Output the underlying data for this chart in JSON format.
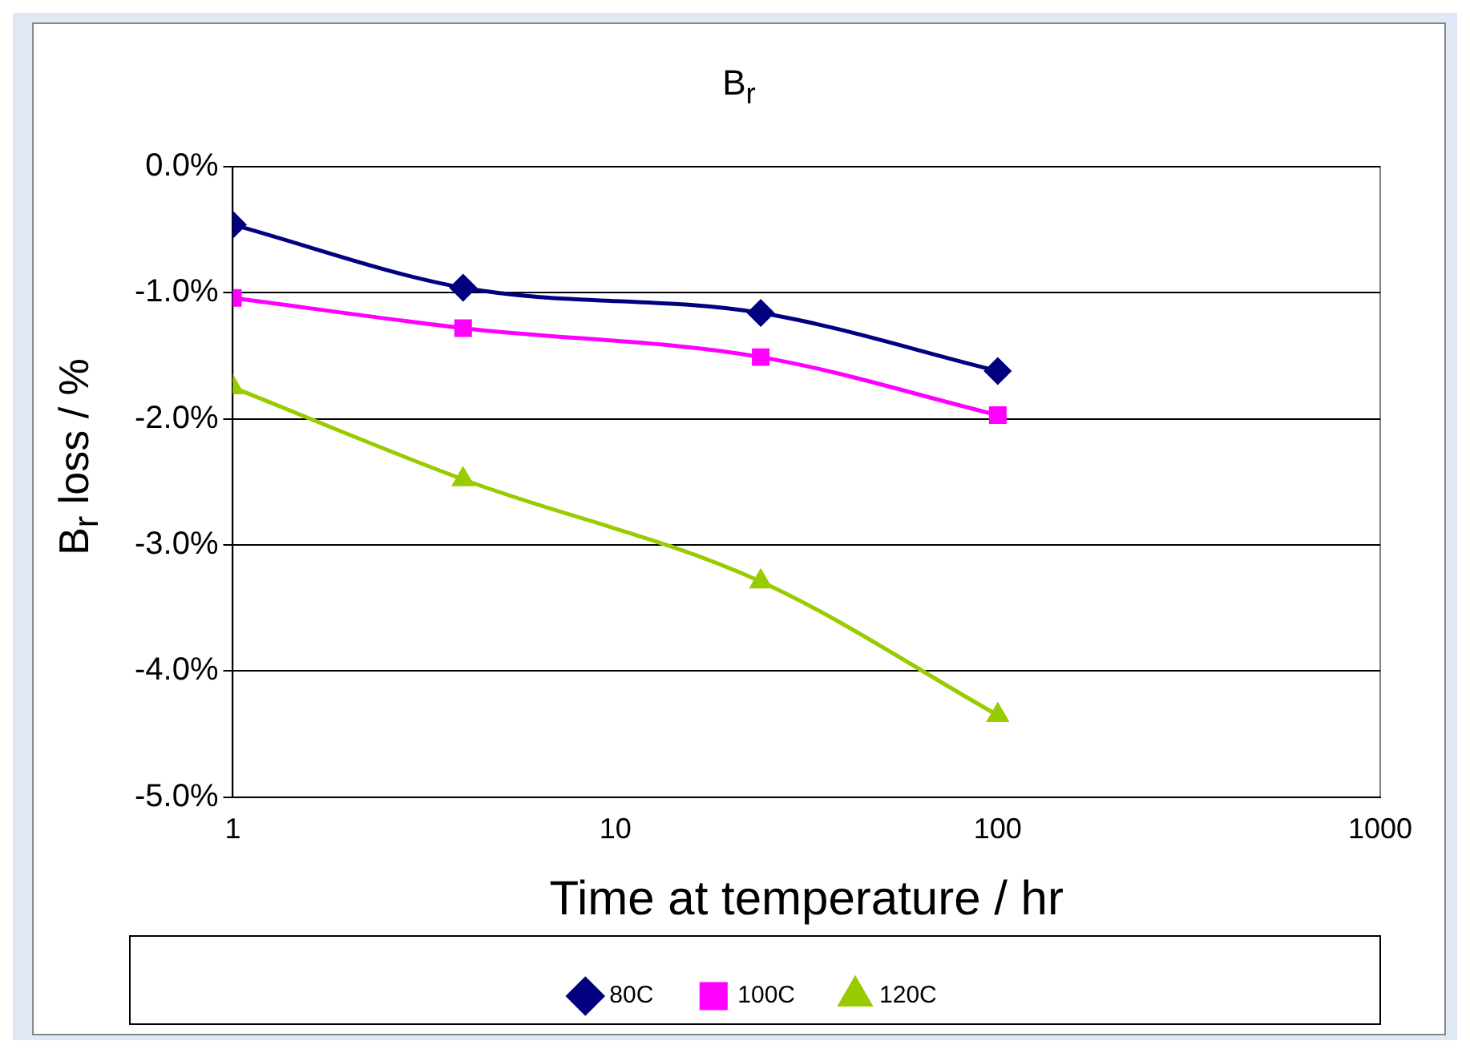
{
  "chart_data": {
    "type": "line",
    "title": "B$_{r}$",
    "xlabel": "Time at temperature / hr",
    "ylabel": "B$_{r}$ loss / %",
    "x": [
      1,
      4,
      24,
      100
    ],
    "series": [
      {
        "name": "80C",
        "color": "#000080",
        "marker": "diamond",
        "values": [
          -0.46,
          -0.96,
          -1.16,
          -1.62
        ]
      },
      {
        "name": "100C",
        "color": "#ff00ff",
        "marker": "square",
        "values": [
          -1.04,
          -1.28,
          -1.51,
          -1.97
        ]
      },
      {
        "name": "120C",
        "color": "#99cc00",
        "marker": "triangle",
        "values": [
          -1.75,
          -2.48,
          -3.29,
          -4.35
        ]
      }
    ],
    "log": "x",
    "xlim": [
      1,
      1000
    ],
    "xticks": [
      1,
      10,
      100,
      1000
    ],
    "ylim": [
      -5,
      0
    ],
    "yticks": [
      {
        "value": 0,
        "label": "0.0%"
      },
      {
        "value": -1,
        "label": "-1.0%"
      },
      {
        "value": -2,
        "label": "-2.0%"
      },
      {
        "value": -3,
        "label": "-3.0%"
      },
      {
        "value": -4,
        "label": "-4.0%"
      },
      {
        "value": -5,
        "label": "-5.0%"
      }
    ],
    "grid": "y",
    "legend": "bottom",
    "line_style": "solid"
  }
}
